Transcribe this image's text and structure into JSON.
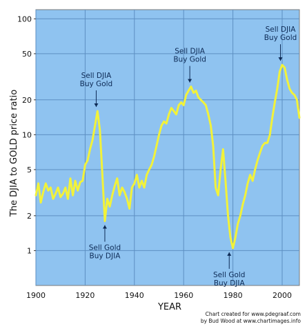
{
  "chart_data": {
    "type": "line",
    "title": "",
    "xlabel": "YEAR",
    "ylabel": "The DJIA to GOLD price ratio",
    "x_ticks": [
      "1900",
      "1920",
      "1940",
      "1960",
      "1980",
      "2000"
    ],
    "y_ticks": [
      "1",
      "2",
      "5",
      "10",
      "20",
      "50",
      "100"
    ],
    "y_scale": "log",
    "xlim": [
      1900,
      2007
    ],
    "ylim": [
      0.5,
      120
    ],
    "grid": true,
    "colors": {
      "plot_background": "#8fc3f0",
      "series_line": "#f2f23a",
      "grid": "#5d8fc2",
      "annotation_text": "#0d2a55"
    },
    "series": [
      {
        "x": [
          1900,
          1901,
          1902,
          1903,
          1904,
          1905,
          1906,
          1907,
          1908,
          1909,
          1910,
          1911,
          1912,
          1913,
          1914,
          1915,
          1916,
          1917,
          1918,
          1919,
          1920,
          1921,
          1922,
          1923,
          1924,
          1925,
          1926,
          1927,
          1928,
          1929,
          1930,
          1931,
          1932,
          1933,
          1934,
          1935,
          1936,
          1937,
          1938,
          1939,
          1940,
          1941,
          1942,
          1943,
          1944,
          1945,
          1946,
          1947,
          1948,
          1949,
          1950,
          1951,
          1952,
          1953,
          1954,
          1955,
          1956,
          1957,
          1958,
          1959,
          1960,
          1961,
          1962,
          1963,
          1964,
          1965,
          1966,
          1967,
          1968,
          1969,
          1970,
          1971,
          1972,
          1973,
          1974,
          1975,
          1976,
          1977,
          1978,
          1979,
          1980,
          1981,
          1982,
          1983,
          1984,
          1985,
          1986,
          1987,
          1988,
          1989,
          1990,
          1991,
          1992,
          1993,
          1994,
          1995,
          1996,
          1997,
          1998,
          1999,
          2000,
          2001,
          2002,
          2003,
          2004,
          2005,
          2006,
          2007
        ],
        "values": [
          3.0,
          3.8,
          2.6,
          3.2,
          3.8,
          3.3,
          3.5,
          2.8,
          3.1,
          3.5,
          2.9,
          3.1,
          3.5,
          2.8,
          4.2,
          3.0,
          4.0,
          3.3,
          3.9,
          4.0,
          5.5,
          6.0,
          7.5,
          9.0,
          12.0,
          16.0,
          11.0,
          4.5,
          1.8,
          2.8,
          2.4,
          3.0,
          3.6,
          4.2,
          3.0,
          3.5,
          3.2,
          2.8,
          2.3,
          3.5,
          3.8,
          4.5,
          3.5,
          4.0,
          3.5,
          4.5,
          5.0,
          5.5,
          6.5,
          8.0,
          10.0,
          12.0,
          13.0,
          12.5,
          15.0,
          17.0,
          16.0,
          15.0,
          18.0,
          19.0,
          18.0,
          22.0,
          24.0,
          26.0,
          23.0,
          24.0,
          21.0,
          20.0,
          19.0,
          18.0,
          15.0,
          12.0,
          8.0,
          3.5,
          3.0,
          5.0,
          7.5,
          4.0,
          2.0,
          1.3,
          1.05,
          1.3,
          1.7,
          2.0,
          2.5,
          3.0,
          3.8,
          4.5,
          4.0,
          5.0,
          6.0,
          7.0,
          8.0,
          8.5,
          8.5,
          10.0,
          14.0,
          19.0,
          25.0,
          35.0,
          40.0,
          38.0,
          30.0,
          25.0,
          23.0,
          22.0,
          20.0,
          14.0
        ]
      }
    ],
    "annotations": [
      {
        "lines": [
          "Sell DJIA",
          "Buy Gold"
        ],
        "x": 1924.5,
        "y": 16.0,
        "direction": "down"
      },
      {
        "lines": [
          "Sell DJIA",
          "Buy Gold"
        ],
        "x": 1962.5,
        "y": 26.0,
        "direction": "down"
      },
      {
        "lines": [
          "Sell DJIA",
          "Buy Gold"
        ],
        "x": 1999.3,
        "y": 40.0,
        "direction": "down"
      },
      {
        "lines": [
          "Sell Gold",
          "Buy DJIA"
        ],
        "x": 1928,
        "y": 1.8,
        "direction": "up"
      },
      {
        "lines": [
          "Sell Gold",
          "Buy DJIA"
        ],
        "x": 1978.5,
        "y": 1.05,
        "direction": "up"
      }
    ]
  },
  "credit": [
    "Chart created for www.pdegraaf.com",
    "by Bud Wood at www.chartimages.info"
  ]
}
